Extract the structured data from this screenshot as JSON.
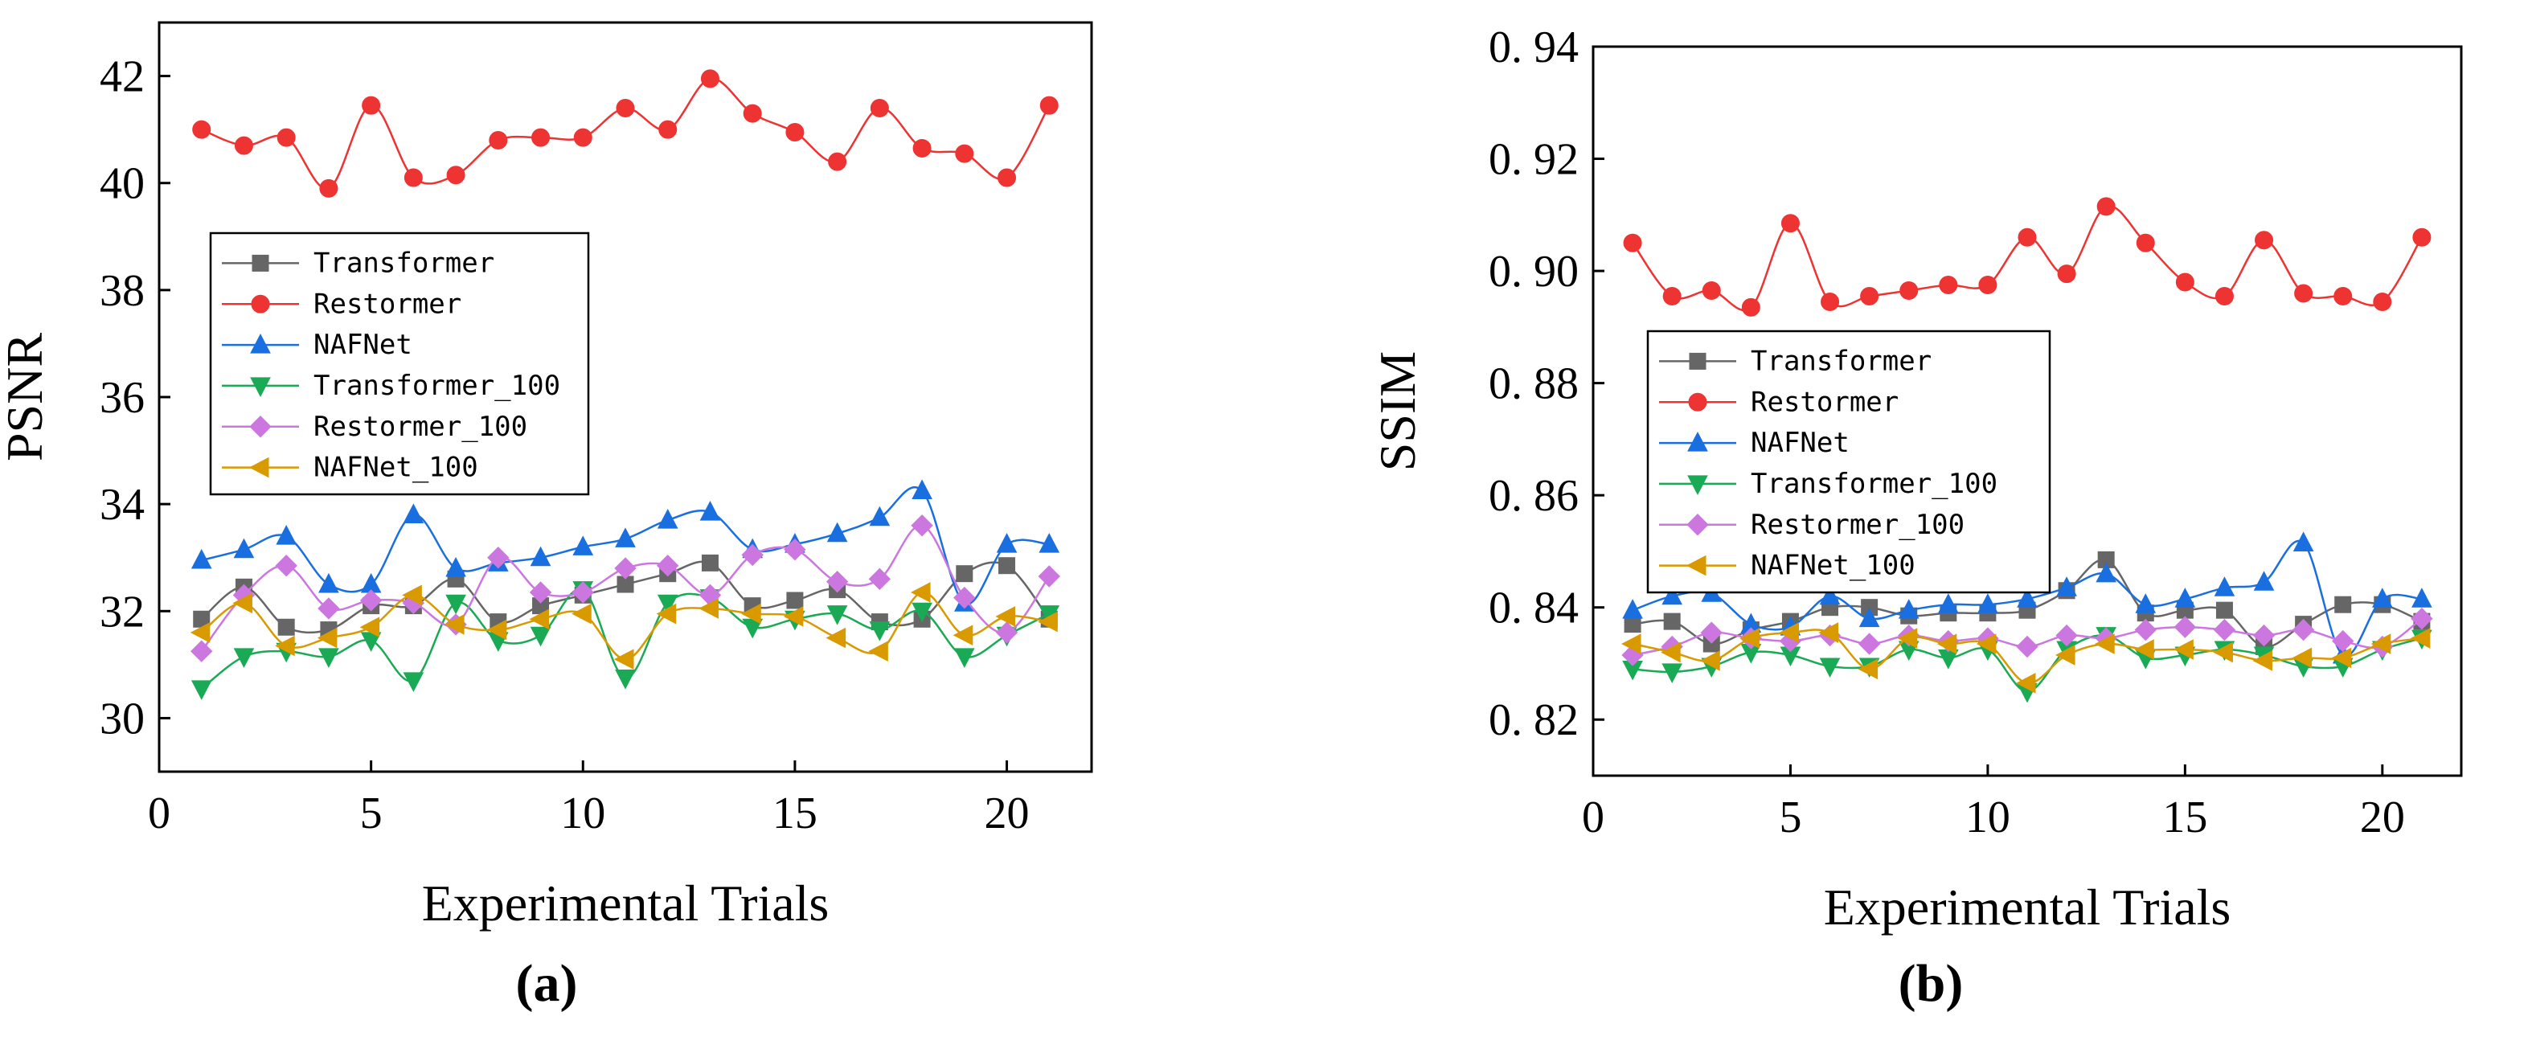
{
  "colors": {
    "Transformer": "#666666",
    "Restormer": "#ee3333",
    "NAFNet": "#1a6fe0",
    "Transformer_100": "#1aaa55",
    "Restormer_100": "#cc77e0",
    "NAFNet_100": "#d99a00"
  },
  "chart_data": [
    {
      "type": "line",
      "panel_label": "(a)",
      "xlabel": "Experimental Trials",
      "ylabel": "PSNR",
      "xlim": [
        0,
        22
      ],
      "ylim": [
        29,
        43
      ],
      "xticks": [
        0,
        5,
        10,
        15,
        20
      ],
      "yticks": [
        30,
        32,
        34,
        36,
        38,
        40,
        42
      ],
      "legend_position": "middle-left",
      "x": [
        1,
        2,
        3,
        4,
        5,
        6,
        7,
        8,
        9,
        10,
        11,
        12,
        13,
        14,
        15,
        16,
        17,
        18,
        19,
        20,
        21
      ],
      "series": [
        {
          "name": "Transformer",
          "marker": "square",
          "values": [
            31.85,
            32.45,
            31.7,
            31.65,
            32.1,
            32.1,
            32.6,
            31.8,
            32.1,
            32.3,
            32.5,
            32.7,
            32.9,
            32.1,
            32.2,
            32.4,
            31.8,
            31.85,
            32.7,
            32.85,
            31.85
          ]
        },
        {
          "name": "Restormer",
          "marker": "circle",
          "values": [
            41.0,
            40.7,
            40.85,
            39.9,
            41.45,
            40.1,
            40.15,
            40.8,
            40.85,
            40.85,
            41.4,
            41.0,
            41.95,
            41.3,
            40.95,
            40.4,
            41.4,
            40.65,
            40.55,
            40.1,
            41.45
          ]
        },
        {
          "name": "NAFNet",
          "marker": "triangle-up",
          "values": [
            32.95,
            33.15,
            33.4,
            32.5,
            32.5,
            33.8,
            32.8,
            32.9,
            33.0,
            33.2,
            33.35,
            33.7,
            33.85,
            33.15,
            33.25,
            33.45,
            33.75,
            34.25,
            32.15,
            33.25,
            33.25
          ]
        },
        {
          "name": "Transformer_100",
          "marker": "triangle-down",
          "values": [
            30.55,
            31.15,
            31.25,
            31.15,
            31.45,
            30.7,
            32.15,
            31.45,
            31.55,
            32.4,
            30.75,
            32.15,
            32.25,
            31.7,
            31.85,
            31.95,
            31.65,
            32.0,
            31.15,
            31.55,
            31.95
          ]
        },
        {
          "name": "Restormer_100",
          "marker": "diamond",
          "values": [
            31.25,
            32.3,
            32.85,
            32.05,
            32.2,
            32.15,
            31.75,
            33.0,
            32.35,
            32.35,
            32.8,
            32.85,
            32.3,
            33.05,
            33.15,
            32.55,
            32.6,
            33.6,
            32.25,
            31.6,
            32.65
          ]
        },
        {
          "name": "NAFNet_100",
          "marker": "triangle-left",
          "values": [
            31.6,
            32.15,
            31.35,
            31.5,
            31.7,
            32.3,
            31.75,
            31.65,
            31.85,
            31.95,
            31.1,
            31.95,
            32.05,
            31.95,
            31.9,
            31.5,
            31.25,
            32.35,
            31.55,
            31.9,
            31.8
          ]
        }
      ]
    },
    {
      "type": "line",
      "panel_label": "(b)",
      "xlabel": "Experimental Trials",
      "ylabel": "SSIM",
      "xlim": [
        0,
        22
      ],
      "ylim": [
        0.81,
        0.94
      ],
      "xticks": [
        0,
        5,
        10,
        15,
        20
      ],
      "yticks": [
        0.82,
        0.84,
        0.86,
        0.88,
        0.9,
        0.92,
        0.94
      ],
      "ytick_labels": [
        "0. 82",
        "0. 84",
        "0. 86",
        "0. 88",
        "0. 90",
        "0. 92",
        "0. 94"
      ],
      "legend_position": "middle-left",
      "x": [
        1,
        2,
        3,
        4,
        5,
        6,
        7,
        8,
        9,
        10,
        11,
        12,
        13,
        14,
        15,
        16,
        17,
        18,
        19,
        20,
        21
      ],
      "series": [
        {
          "name": "Transformer",
          "marker": "square",
          "values": [
            0.837,
            0.8375,
            0.8335,
            0.836,
            0.8375,
            0.84,
            0.84,
            0.8385,
            0.839,
            0.839,
            0.8395,
            0.843,
            0.8485,
            0.839,
            0.8395,
            0.8395,
            0.833,
            0.837,
            0.8405,
            0.8405,
            0.8375
          ]
        },
        {
          "name": "Restormer",
          "marker": "circle",
          "values": [
            0.905,
            0.8955,
            0.8965,
            0.8935,
            0.9085,
            0.8945,
            0.8955,
            0.8965,
            0.8975,
            0.8975,
            0.906,
            0.8995,
            0.9115,
            0.905,
            0.898,
            0.8955,
            0.9055,
            0.896,
            0.8955,
            0.8945,
            0.906
          ]
        },
        {
          "name": "NAFNet",
          "marker": "triangle-up",
          "values": [
            0.8395,
            0.842,
            0.8425,
            0.837,
            0.8365,
            0.842,
            0.838,
            0.8395,
            0.8405,
            0.8405,
            0.8415,
            0.8435,
            0.846,
            0.8405,
            0.8415,
            0.8435,
            0.8445,
            0.8515,
            0.8315,
            0.8415,
            0.8415
          ]
        },
        {
          "name": "Transformer_100",
          "marker": "triangle-down",
          "values": [
            0.829,
            0.8285,
            0.8295,
            0.832,
            0.8315,
            0.8295,
            0.8295,
            0.8325,
            0.831,
            0.8325,
            0.825,
            0.8325,
            0.835,
            0.831,
            0.8315,
            0.8325,
            0.8315,
            0.8295,
            0.8295,
            0.8325,
            0.8345
          ]
        },
        {
          "name": "Restormer_100",
          "marker": "diamond",
          "values": [
            0.8315,
            0.833,
            0.8355,
            0.8345,
            0.834,
            0.835,
            0.8335,
            0.835,
            0.834,
            0.8345,
            0.833,
            0.835,
            0.8345,
            0.836,
            0.8365,
            0.836,
            0.835,
            0.836,
            0.834,
            0.833,
            0.838
          ]
        },
        {
          "name": "NAFNet_100",
          "marker": "triangle-left",
          "values": [
            0.8335,
            0.832,
            0.8305,
            0.8345,
            0.8355,
            0.8355,
            0.829,
            0.8345,
            0.8335,
            0.8335,
            0.8265,
            0.8315,
            0.8335,
            0.8325,
            0.8325,
            0.832,
            0.8305,
            0.831,
            0.831,
            0.8335,
            0.8345
          ]
        }
      ]
    }
  ]
}
